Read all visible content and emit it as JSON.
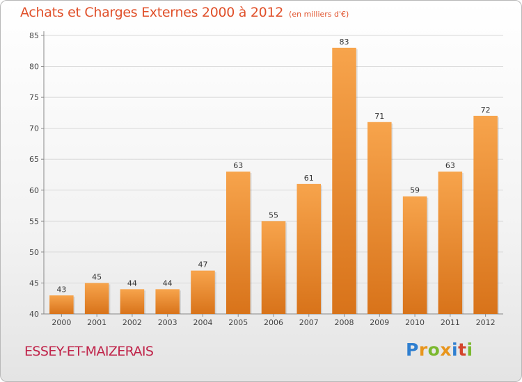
{
  "header": {
    "title": "Achats et Charges Externes 2000 à 2012",
    "subtitle": "(en milliers d'€)"
  },
  "footer": {
    "commune": "ESSEY-ET-MAIZERAIS",
    "logo": [
      "P",
      "r",
      "o",
      "x",
      "i",
      "t",
      "i"
    ],
    "logo_colors": [
      "#2f7fd0",
      "#e8951c",
      "#7ab82e",
      "#e8951c",
      "#2f7fd0",
      "#d4452c",
      "#7ab82e"
    ]
  },
  "colors": {
    "title": "#e0502a",
    "commune": "#c0244a",
    "bar_top": "#f7a44c",
    "bar_bottom": "#d8731a",
    "grid": "#d8d8d8"
  },
  "chart_data": {
    "type": "bar",
    "title": "Achats et Charges Externes 2000 à 2012",
    "subtitle": "(en milliers d'€)",
    "categories": [
      "2000",
      "2001",
      "2002",
      "2003",
      "2004",
      "2005",
      "2006",
      "2007",
      "2008",
      "2009",
      "2010",
      "2011",
      "2012"
    ],
    "values": [
      43,
      45,
      44,
      44,
      47,
      63,
      55,
      61,
      83,
      71,
      59,
      63,
      72
    ],
    "ylim": [
      40,
      85
    ],
    "yticks": [
      40,
      45,
      50,
      55,
      60,
      65,
      70,
      75,
      80,
      85
    ],
    "grid": true,
    "data_labels": true
  }
}
